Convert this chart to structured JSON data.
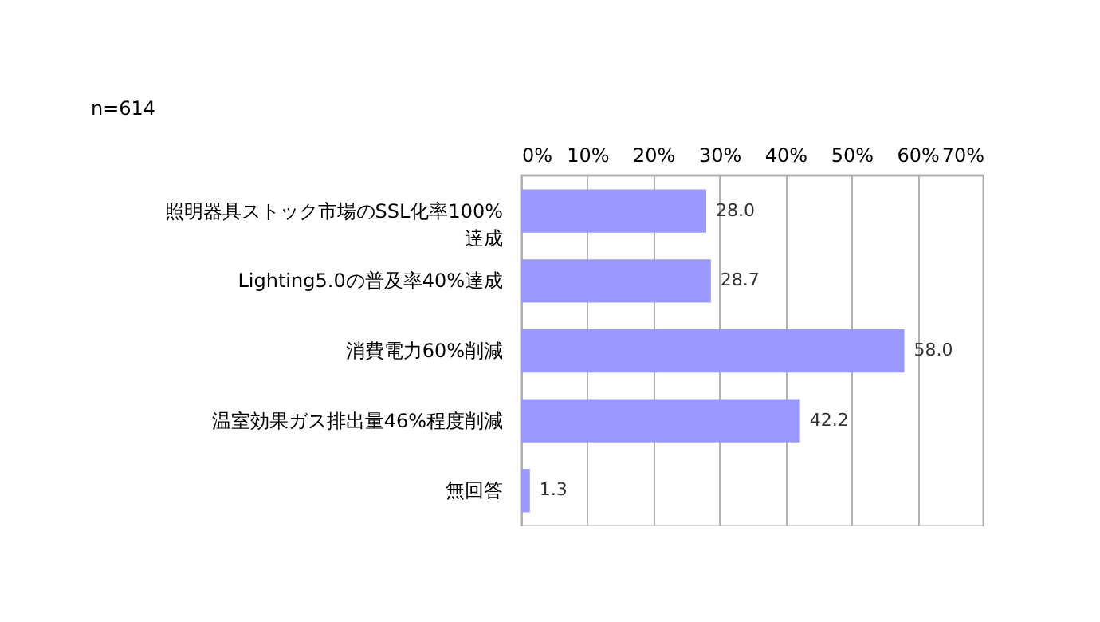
{
  "chart_data": {
    "type": "bar",
    "orientation": "horizontal",
    "categories": [
      "照明器具ストック市場のSSL化率100%達成",
      "Lighting5.0の普及率40%達成",
      "消費電力60%削減",
      "温室効果ガス排出量46%程度削減",
      "無回答"
    ],
    "values": [
      28.0,
      28.7,
      58.0,
      42.2,
      1.3
    ],
    "color": "#9999ff",
    "xlim": [
      0,
      70
    ],
    "xticks": [
      {
        "value": 0,
        "label": "0%"
      },
      {
        "value": 10,
        "label": "10%"
      },
      {
        "value": 20,
        "label": "20%"
      },
      {
        "value": 30,
        "label": "30%"
      },
      {
        "value": 40,
        "label": "40%"
      },
      {
        "value": 50,
        "label": "50%"
      },
      {
        "value": 60,
        "label": "60%"
      },
      {
        "value": 70,
        "label": "70%"
      }
    ],
    "value_labels": [
      "28.0",
      "28.7",
      "58.0",
      "42.2",
      "1.3"
    ],
    "grid": "x",
    "annotations": [
      "n=614"
    ]
  }
}
